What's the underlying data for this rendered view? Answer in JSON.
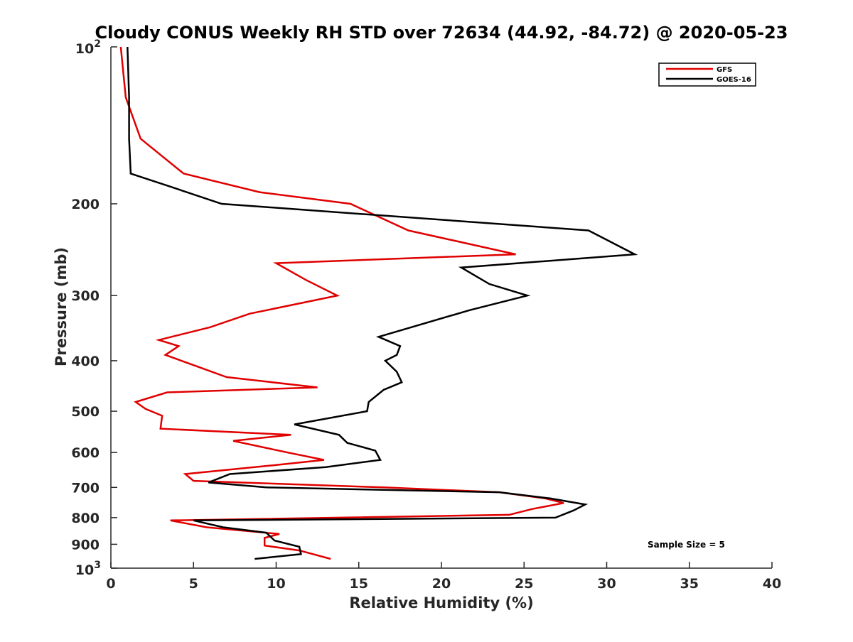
{
  "chart_data": {
    "type": "line",
    "title": "Cloudy CONUS Weekly RH STD over 72634 (44.92, -84.72) @ 2020-05-23",
    "xlabel": "Relative Humidity (%)",
    "ylabel": "Pressure (mb)",
    "xlim": [
      0,
      40
    ],
    "ylim": [
      100,
      1000
    ],
    "yscale": "log",
    "y_reversed": true,
    "grid": false,
    "legend_position": "top-right",
    "x_ticks": [
      "0",
      "5",
      "10",
      "15",
      "20",
      "25",
      "30",
      "35",
      "40"
    ],
    "y_ticks": [
      {
        "value": 100,
        "base": "10",
        "exp": "2"
      },
      {
        "value": 200,
        "label": "200"
      },
      {
        "value": 300,
        "label": "300"
      },
      {
        "value": 400,
        "label": "400"
      },
      {
        "value": 500,
        "label": "500"
      },
      {
        "value": 600,
        "label": "600"
      },
      {
        "value": 700,
        "label": "700"
      },
      {
        "value": 800,
        "label": "800"
      },
      {
        "value": 900,
        "label": "900"
      },
      {
        "value": 1000,
        "base": "10",
        "exp": "3"
      }
    ],
    "annotation": "Sample Size = 5",
    "series": [
      {
        "name": "GFS",
        "color": "#e00000",
        "points": [
          [
            0.6,
            100
          ],
          [
            0.9,
            125
          ],
          [
            1.8,
            150
          ],
          [
            4.4,
            175
          ],
          [
            9.0,
            190
          ],
          [
            14.5,
            200
          ],
          [
            18.0,
            225
          ],
          [
            24.5,
            250
          ],
          [
            10.0,
            260
          ],
          [
            11.8,
            280
          ],
          [
            13.7,
            300
          ],
          [
            8.4,
            325
          ],
          [
            6.0,
            345
          ],
          [
            2.9,
            365
          ],
          [
            4.1,
            375
          ],
          [
            3.3,
            390
          ],
          [
            7.0,
            430
          ],
          [
            12.5,
            450
          ],
          [
            3.4,
            460
          ],
          [
            1.5,
            480
          ],
          [
            2.1,
            495
          ],
          [
            3.1,
            510
          ],
          [
            3.0,
            540
          ],
          [
            10.9,
            555
          ],
          [
            7.4,
            570
          ],
          [
            10.7,
            600
          ],
          [
            12.9,
            620
          ],
          [
            9.8,
            635
          ],
          [
            4.5,
            660
          ],
          [
            5.0,
            680
          ],
          [
            16.5,
            700
          ],
          [
            23.5,
            715
          ],
          [
            26.3,
            735
          ],
          [
            27.4,
            750
          ],
          [
            25.5,
            770
          ],
          [
            24.1,
            790
          ],
          [
            3.6,
            810
          ],
          [
            5.8,
            835
          ],
          [
            10.2,
            860
          ],
          [
            9.3,
            875
          ],
          [
            9.3,
            905
          ],
          [
            11.4,
            925
          ],
          [
            13.3,
            960
          ]
        ]
      },
      {
        "name": "GOES-16",
        "color": "#000000",
        "points": [
          [
            1.0,
            100
          ],
          [
            1.1,
            125
          ],
          [
            1.1,
            150
          ],
          [
            1.2,
            175
          ],
          [
            3.5,
            185
          ],
          [
            6.7,
            200
          ],
          [
            28.9,
            225
          ],
          [
            31.7,
            250
          ],
          [
            21.2,
            265
          ],
          [
            22.9,
            285
          ],
          [
            25.2,
            300
          ],
          [
            21.7,
            320
          ],
          [
            16.2,
            360
          ],
          [
            17.5,
            375
          ],
          [
            17.3,
            390
          ],
          [
            16.6,
            400
          ],
          [
            17.3,
            420
          ],
          [
            17.6,
            440
          ],
          [
            16.5,
            455
          ],
          [
            15.6,
            480
          ],
          [
            15.5,
            500
          ],
          [
            11.1,
            530
          ],
          [
            13.8,
            555
          ],
          [
            14.3,
            575
          ],
          [
            16.0,
            595
          ],
          [
            16.3,
            620
          ],
          [
            13.0,
            640
          ],
          [
            7.2,
            660
          ],
          [
            5.9,
            685
          ],
          [
            9.4,
            700
          ],
          [
            23.5,
            715
          ],
          [
            26.6,
            735
          ],
          [
            28.7,
            755
          ],
          [
            28.0,
            775
          ],
          [
            26.9,
            800
          ],
          [
            5.0,
            810
          ],
          [
            6.8,
            835
          ],
          [
            9.4,
            855
          ],
          [
            9.9,
            885
          ],
          [
            11.4,
            910
          ],
          [
            11.5,
            940
          ],
          [
            8.7,
            960
          ]
        ]
      }
    ]
  }
}
